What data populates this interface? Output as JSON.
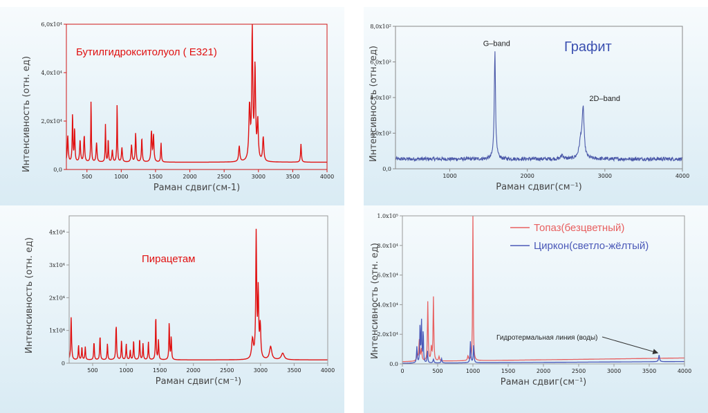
{
  "chart_data": [
    {
      "type": "line",
      "title": "Бутилгидрокситолуол ( E321)",
      "xlabel": "Раман сдвиг(см-1)",
      "ylabel": "Интенсивность (отн. ед)",
      "xlim": [
        200,
        4000
      ],
      "ylim": [
        0,
        60000
      ],
      "x_ticks": [
        500,
        1000,
        1500,
        2000,
        2500,
        3000,
        3500,
        4000
      ],
      "y_ticks": [
        0,
        20000,
        40000,
        60000
      ],
      "y_tick_labels": [
        "0,0",
        "2,0x10⁴",
        "4,0x10⁴",
        "6,0x10⁴"
      ],
      "colors": {
        "line": "#e01010",
        "title": "#e01010",
        "frame": "#d01515"
      },
      "baseline": 3000,
      "peaks": [
        {
          "x": 220,
          "y": 11000,
          "w": 8
        },
        {
          "x": 290,
          "y": 20000,
          "w": 6
        },
        {
          "x": 320,
          "y": 14000,
          "w": 6
        },
        {
          "x": 400,
          "y": 9000,
          "w": 8
        },
        {
          "x": 460,
          "y": 11000,
          "w": 8
        },
        {
          "x": 560,
          "y": 26000,
          "w": 5
        },
        {
          "x": 640,
          "y": 8000,
          "w": 8
        },
        {
          "x": 770,
          "y": 15500,
          "w": 5
        },
        {
          "x": 810,
          "y": 10000,
          "w": 5
        },
        {
          "x": 870,
          "y": 5000,
          "w": 8
        },
        {
          "x": 940,
          "y": 24500,
          "w": 5
        },
        {
          "x": 1010,
          "y": 6000,
          "w": 8
        },
        {
          "x": 1150,
          "y": 7000,
          "w": 8
        },
        {
          "x": 1210,
          "y": 12000,
          "w": 7
        },
        {
          "x": 1300,
          "y": 10000,
          "w": 7
        },
        {
          "x": 1440,
          "y": 12500,
          "w": 8
        },
        {
          "x": 1470,
          "y": 11000,
          "w": 8
        },
        {
          "x": 1580,
          "y": 8000,
          "w": 6
        },
        {
          "x": 2720,
          "y": 6500,
          "w": 10
        },
        {
          "x": 2870,
          "y": 22000,
          "w": 12
        },
        {
          "x": 2910,
          "y": 54000,
          "w": 9
        },
        {
          "x": 2950,
          "y": 38000,
          "w": 10
        },
        {
          "x": 2990,
          "y": 16000,
          "w": 10
        },
        {
          "x": 3070,
          "y": 10000,
          "w": 10
        },
        {
          "x": 3620,
          "y": 7500,
          "w": 7
        }
      ]
    },
    {
      "type": "line",
      "title": "Графит",
      "xlabel": "Раман сдвиг(см⁻¹)",
      "ylabel": "Интенсивность (отн. ед)",
      "xlim": [
        300,
        4000
      ],
      "ylim": [
        0,
        800
      ],
      "x_ticks": [
        1000,
        2000,
        3000,
        4000
      ],
      "y_ticks": [
        0,
        200,
        400,
        600,
        800
      ],
      "y_tick_labels": [
        "0,0",
        "2,0x10²",
        "4,0x10²",
        "6,0x10²",
        "8,0x10²"
      ],
      "colors": {
        "line": "#4a58a8",
        "title": "#3a4fb0",
        "frame": "#888888"
      },
      "baseline": 55,
      "noise": 10,
      "annotations": [
        {
          "text": "G–band",
          "x": 1430,
          "y": 690
        },
        {
          "text": "2D–band",
          "x": 2800,
          "y": 380
        }
      ],
      "peaks": [
        {
          "x": 1582,
          "y": 600,
          "w": 10
        },
        {
          "x": 2690,
          "y": 100,
          "w": 25
        },
        {
          "x": 2720,
          "y": 260,
          "w": 14
        },
        {
          "x": 2450,
          "y": 25,
          "w": 15
        }
      ]
    },
    {
      "type": "line",
      "title": "Пирацетам",
      "xlabel": "Раман сдвиг(см⁻¹)",
      "ylabel": "Интенсивность (отн. ед)",
      "xlim": [
        150,
        4000
      ],
      "ylim": [
        0,
        45000
      ],
      "x_ticks": [
        500,
        1000,
        1500,
        2000,
        2500,
        3000,
        3500,
        4000
      ],
      "y_ticks": [
        0,
        10000,
        20000,
        30000,
        40000
      ],
      "y_tick_labels": [
        "0",
        "1x10⁴",
        "2x10⁴",
        "3x10⁴",
        "4x10⁴"
      ],
      "colors": {
        "line": "#e01010",
        "title": "#e01010",
        "frame": "#999999"
      },
      "baseline": 1000,
      "peaks": [
        {
          "x": 180,
          "y": 13000,
          "w": 7
        },
        {
          "x": 290,
          "y": 4500,
          "w": 6
        },
        {
          "x": 340,
          "y": 4000,
          "w": 6
        },
        {
          "x": 390,
          "y": 4000,
          "w": 6
        },
        {
          "x": 520,
          "y": 5500,
          "w": 6
        },
        {
          "x": 610,
          "y": 7500,
          "w": 6
        },
        {
          "x": 720,
          "y": 5000,
          "w": 6
        },
        {
          "x": 850,
          "y": 10500,
          "w": 7
        },
        {
          "x": 930,
          "y": 6000,
          "w": 6
        },
        {
          "x": 1000,
          "y": 5000,
          "w": 6
        },
        {
          "x": 1060,
          "y": 3000,
          "w": 6
        },
        {
          "x": 1110,
          "y": 6000,
          "w": 6
        },
        {
          "x": 1200,
          "y": 6500,
          "w": 6
        },
        {
          "x": 1250,
          "y": 5000,
          "w": 6
        },
        {
          "x": 1330,
          "y": 5500,
          "w": 6
        },
        {
          "x": 1440,
          "y": 13500,
          "w": 6
        },
        {
          "x": 1480,
          "y": 6000,
          "w": 6
        },
        {
          "x": 1640,
          "y": 11500,
          "w": 6
        },
        {
          "x": 1670,
          "y": 7000,
          "w": 6
        },
        {
          "x": 2880,
          "y": 6000,
          "w": 15
        },
        {
          "x": 2935,
          "y": 38000,
          "w": 8
        },
        {
          "x": 2965,
          "y": 20000,
          "w": 8
        },
        {
          "x": 2995,
          "y": 10000,
          "w": 10
        },
        {
          "x": 3150,
          "y": 4000,
          "w": 20
        },
        {
          "x": 3330,
          "y": 2000,
          "w": 25
        }
      ]
    },
    {
      "type": "line",
      "xlabel": "Раман сдвиг(см⁻¹)",
      "ylabel": "Интенсивность (отн. ед)",
      "xlim": [
        0,
        4000
      ],
      "ylim": [
        0,
        100000
      ],
      "x_ticks": [
        0,
        500,
        1000,
        1500,
        2000,
        2500,
        3000,
        3500,
        4000
      ],
      "y_ticks": [
        0,
        20000,
        40000,
        60000,
        80000,
        100000
      ],
      "y_tick_labels": [
        "0.0",
        "2.0x10⁴",
        "4.0x10⁴",
        "6.0x10⁴",
        "8.0x10⁴",
        "1.0x10⁵"
      ],
      "colors": {
        "frame": "#999999"
      },
      "annotation": {
        "text": "Гидротермальная линия (воды)",
        "x_data": 3640,
        "y_data": 6500
      },
      "series": [
        {
          "name": "Топаз(безцветный)",
          "color": "#e86060",
          "baseline": 1500,
          "rise": 2500,
          "peaks": [
            {
              "x": 210,
              "y": 4000,
              "w": 10
            },
            {
              "x": 240,
              "y": 14000,
              "w": 8
            },
            {
              "x": 270,
              "y": 8000,
              "w": 8
            },
            {
              "x": 360,
              "y": 40000,
              "w": 6
            },
            {
              "x": 410,
              "y": 9000,
              "w": 7
            },
            {
              "x": 440,
              "y": 43000,
              "w": 6
            },
            {
              "x": 520,
              "y": 3000,
              "w": 8
            },
            {
              "x": 930,
              "y": 3000,
              "w": 8
            },
            {
              "x": 1000,
              "y": 98000,
              "w": 5
            }
          ]
        },
        {
          "name": "Циркон(светло-жёлтый)",
          "color": "#4a58b8",
          "baseline": 400,
          "rise": 1200,
          "peaks": [
            {
              "x": 205,
              "y": 11000,
              "w": 6
            },
            {
              "x": 250,
              "y": 25000,
              "w": 5
            },
            {
              "x": 270,
              "y": 29000,
              "w": 5
            },
            {
              "x": 295,
              "y": 22000,
              "w": 5
            },
            {
              "x": 355,
              "y": 8000,
              "w": 6
            },
            {
              "x": 440,
              "y": 2500,
              "w": 8
            },
            {
              "x": 555,
              "y": 3000,
              "w": 7
            },
            {
              "x": 965,
              "y": 14500,
              "w": 6
            },
            {
              "x": 1010,
              "y": 12000,
              "w": 6
            },
            {
              "x": 3640,
              "y": 4500,
              "w": 8
            }
          ]
        }
      ]
    }
  ]
}
